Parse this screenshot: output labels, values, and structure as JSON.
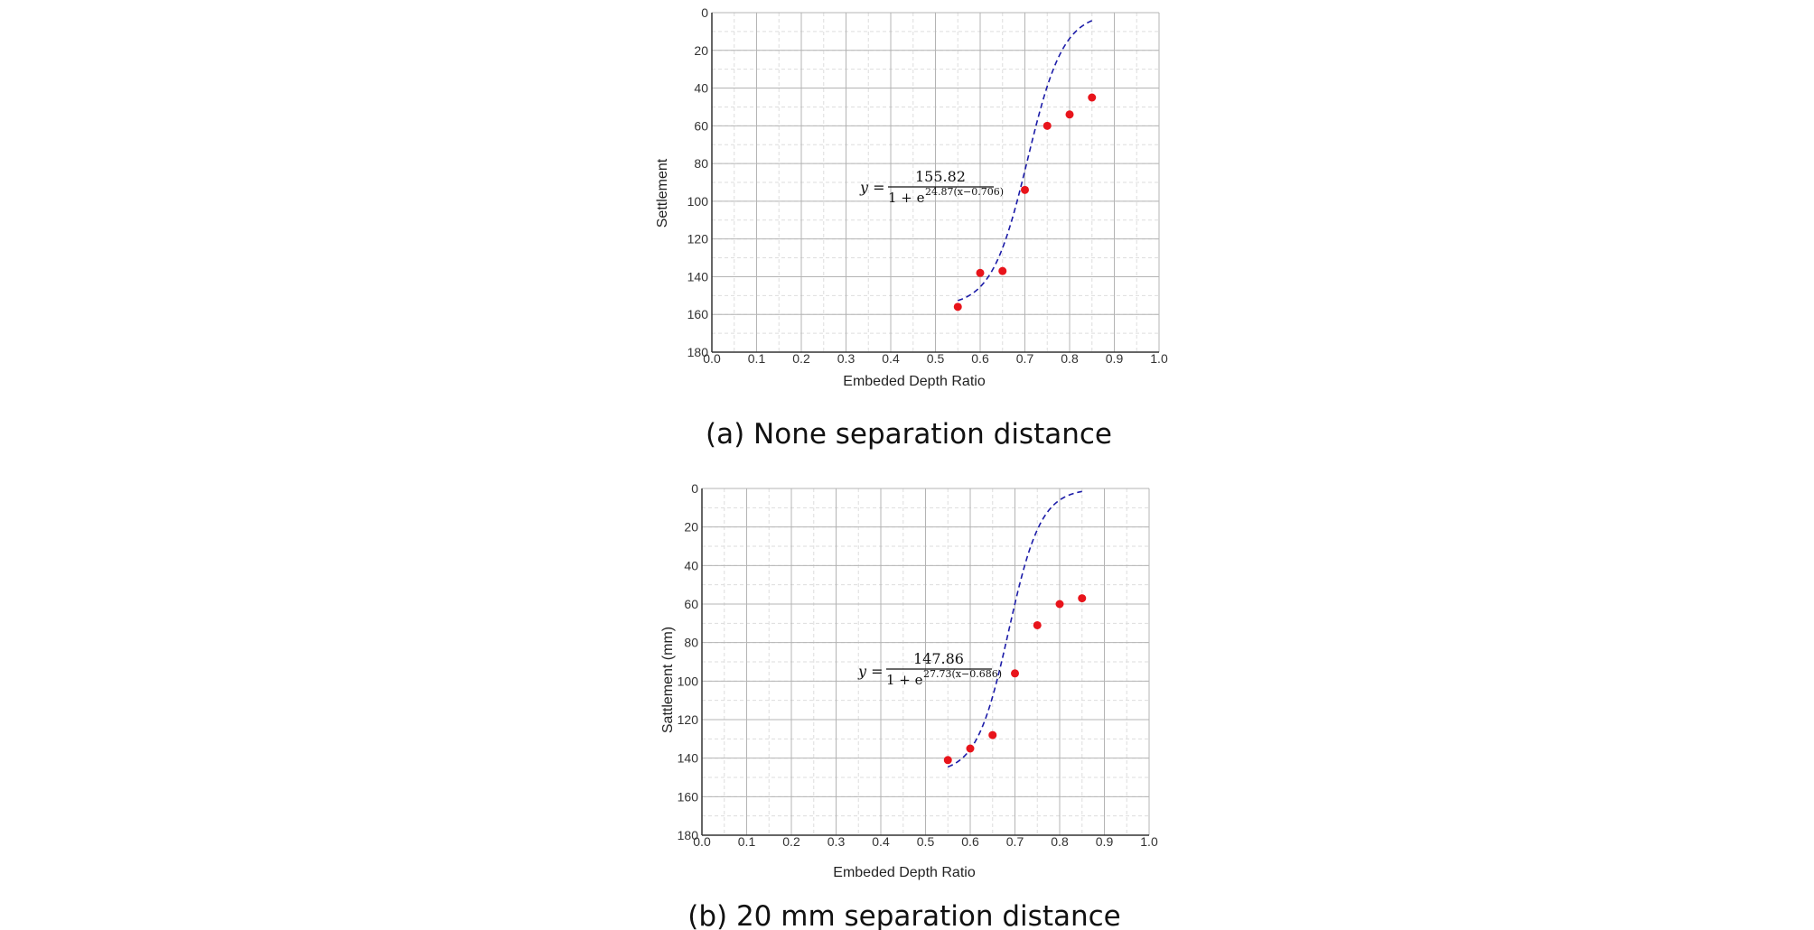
{
  "chart_data": [
    {
      "type": "scatter",
      "caption": "(a) None separation distance",
      "xlabel": "Embeded Depth Ratio",
      "ylabel": "Settlement",
      "xlim": [
        0.0,
        1.0
      ],
      "ylim": [
        0,
        180
      ],
      "y_inverted": true,
      "grid": true,
      "x_ticks": [
        "0.0",
        "0.1",
        "0.2",
        "0.3",
        "0.4",
        "0.5",
        "0.6",
        "0.7",
        "0.8",
        "0.9",
        "1.0"
      ],
      "y_ticks": [
        "0",
        "20",
        "40",
        "60",
        "80",
        "100",
        "120",
        "140",
        "160",
        "180"
      ],
      "points": [
        {
          "x": 0.55,
          "y": 156
        },
        {
          "x": 0.6,
          "y": 138
        },
        {
          "x": 0.65,
          "y": 137
        },
        {
          "x": 0.7,
          "y": 94
        },
        {
          "x": 0.75,
          "y": 60
        },
        {
          "x": 0.8,
          "y": 54
        },
        {
          "x": 0.85,
          "y": 45
        }
      ],
      "fit": {
        "A": 155.82,
        "k": 24.87,
        "x0": 0.706,
        "lhs": "y =",
        "numerator": "155.82",
        "denominator": "1 + e",
        "exponent": "24.87(x−0.706)"
      },
      "colors": {
        "points": "#e8141b",
        "fit": "#1c1ca8",
        "grid_major": "#b4b4b4",
        "grid_minor": "#dddddd"
      }
    },
    {
      "type": "scatter",
      "caption": "(b) 20 mm separation distance",
      "xlabel": "Embeded Depth Ratio",
      "ylabel": "Sattlement (mm)",
      "xlim": [
        0.0,
        1.0
      ],
      "ylim": [
        0,
        180
      ],
      "y_inverted": true,
      "grid": true,
      "x_ticks": [
        "0.0",
        "0.1",
        "0.2",
        "0.3",
        "0.4",
        "0.5",
        "0.6",
        "0.7",
        "0.8",
        "0.9",
        "1.0"
      ],
      "y_ticks": [
        "0",
        "20",
        "40",
        "60",
        "80",
        "100",
        "120",
        "140",
        "160",
        "180"
      ],
      "points": [
        {
          "x": 0.55,
          "y": 141
        },
        {
          "x": 0.6,
          "y": 135
        },
        {
          "x": 0.65,
          "y": 128
        },
        {
          "x": 0.7,
          "y": 96
        },
        {
          "x": 0.75,
          "y": 71
        },
        {
          "x": 0.8,
          "y": 60
        },
        {
          "x": 0.85,
          "y": 57
        }
      ],
      "fit": {
        "A": 147.86,
        "k": 27.73,
        "x0": 0.686,
        "lhs": "y =",
        "numerator": "147.86",
        "denominator": "1 + e",
        "exponent": "27.73(x−0.686)"
      },
      "colors": {
        "points": "#e8141b",
        "fit": "#1c1ca8",
        "grid_major": "#b4b4b4",
        "grid_minor": "#dddddd"
      }
    }
  ]
}
